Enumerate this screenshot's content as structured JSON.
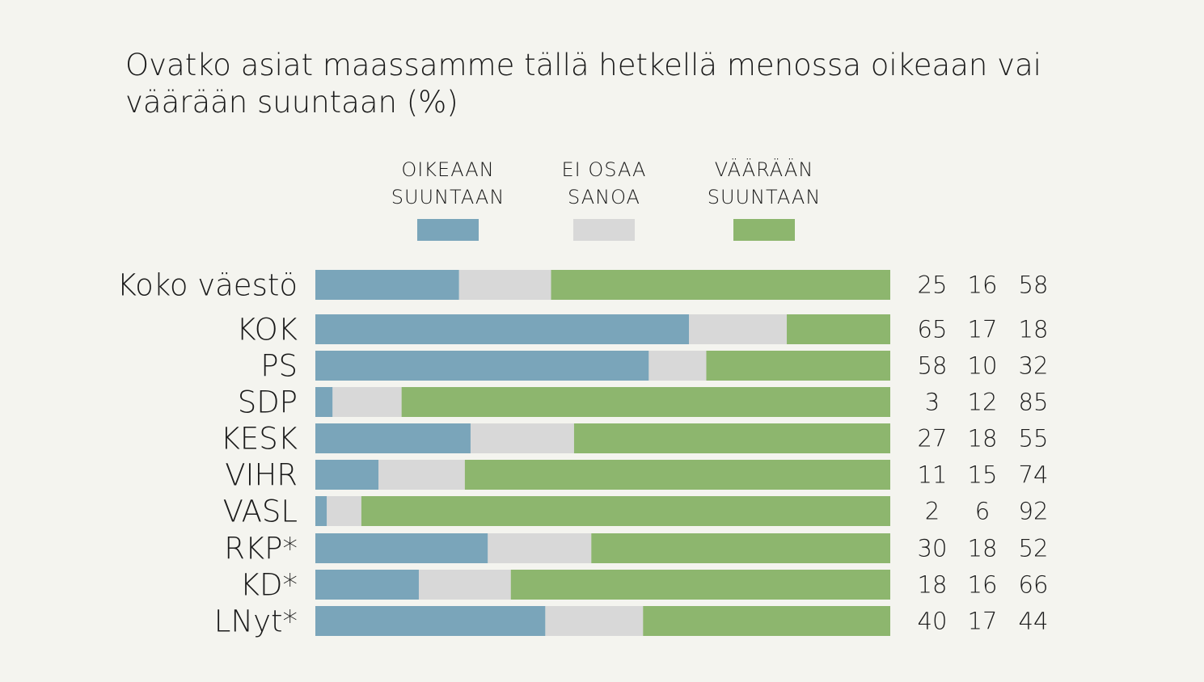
{
  "title": "Ovatko asiat maassamme tällä hetkellä menossa oikeaan vai väärään suuntaan (%)",
  "legend": [
    {
      "label": "OIKEAAN\nSUUNTAAN",
      "color": "#7aa5ba"
    },
    {
      "label": "EI OSAA\nSANOA",
      "color": "#d8d8d8"
    },
    {
      "label": "VÄÄRÄÄN\nSUUNTAAN",
      "color": "#8db66e"
    }
  ],
  "chart_data": {
    "type": "bar",
    "stacked": true,
    "orientation": "horizontal",
    "title": "Ovatko asiat maassamme tällä hetkellä menossa oikeaan vai väärään suuntaan (%)",
    "xlim": [
      0,
      100
    ],
    "categories": [
      "Koko väestö",
      "KOK",
      "PS",
      "SDP",
      "KESK",
      "VIHR",
      "VASL",
      "RKP*",
      "KD*",
      "LNyt*"
    ],
    "series": [
      {
        "name": "OIKEAAN SUUNTAAN",
        "color": "#7aa5ba",
        "values": [
          25,
          65,
          58,
          3,
          27,
          11,
          2,
          30,
          18,
          40
        ]
      },
      {
        "name": "EI OSAA SANOA",
        "color": "#d8d8d8",
        "values": [
          16,
          17,
          10,
          12,
          18,
          15,
          6,
          18,
          16,
          17
        ]
      },
      {
        "name": "VÄÄRÄÄN SUUNTAAN",
        "color": "#8db66e",
        "values": [
          58,
          18,
          32,
          85,
          55,
          74,
          92,
          52,
          66,
          44
        ]
      }
    ],
    "legend_position": "top"
  }
}
